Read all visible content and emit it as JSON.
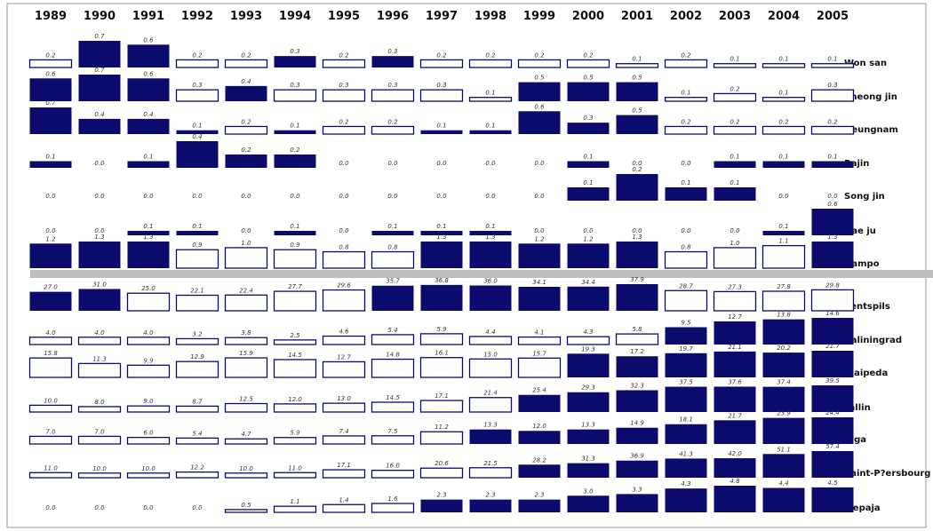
{
  "chart_data": {
    "type": "bar",
    "color": "#0b0b6e",
    "categories": [
      "1989",
      "1990",
      "1991",
      "1992",
      "1993",
      "1994",
      "1995",
      "1996",
      "1997",
      "1998",
      "1999",
      "2000",
      "2001",
      "2002",
      "2003",
      "2004",
      "2005"
    ],
    "series": [
      {
        "name": "Won san",
        "values": [
          0.2,
          0.7,
          0.6,
          0.2,
          0.2,
          0.3,
          0.2,
          0.3,
          0.2,
          0.2,
          0.2,
          0.2,
          0.1,
          0.2,
          0.1,
          0.1,
          0.1
        ],
        "value_labels": [
          "0.2",
          "0.7",
          "0.6",
          "0.2",
          "0.2",
          "0.3",
          "0.2",
          "0.3",
          "0.2",
          "0.2",
          "0.2",
          "0.2",
          "0.1",
          "0.2",
          "0.1",
          "0.1",
          "0.1"
        ],
        "highlight": [
          false,
          true,
          true,
          false,
          false,
          true,
          false,
          true,
          false,
          false,
          false,
          false,
          false,
          false,
          false,
          false,
          false
        ]
      },
      {
        "name": "Cheong jin",
        "values": [
          0.6,
          0.7,
          0.6,
          0.3,
          0.4,
          0.3,
          0.3,
          0.3,
          0.3,
          0.1,
          0.5,
          0.5,
          0.5,
          0.1,
          0.2,
          0.1,
          0.3
        ],
        "value_labels": [
          "0.6",
          "0.7",
          "0.6",
          "0.3",
          "0.4",
          "0.3",
          "0.3",
          "0.3",
          "0.3",
          "0.1",
          "0.5",
          "0.5",
          "0.5",
          "0.1",
          "0.2",
          "0.1",
          "0.3"
        ],
        "highlight": [
          true,
          true,
          true,
          false,
          true,
          false,
          false,
          false,
          false,
          false,
          true,
          true,
          true,
          false,
          false,
          false,
          false
        ]
      },
      {
        "name": "Heungnam",
        "values": [
          0.7,
          0.4,
          0.4,
          0.1,
          0.2,
          0.1,
          0.2,
          0.2,
          0.1,
          0.1,
          0.6,
          0.3,
          0.5,
          0.2,
          0.2,
          0.2,
          0.2
        ],
        "value_labels": [
          "0.7",
          "0.4",
          "0.4",
          "0.1",
          "0.2",
          "0.1",
          "0.2",
          "0.2",
          "0.1",
          "0.1",
          "0.6",
          "0.3",
          "0.5",
          "0.2",
          "0.2",
          "0.2",
          "0.2"
        ],
        "highlight": [
          true,
          true,
          true,
          true,
          false,
          true,
          false,
          false,
          true,
          true,
          true,
          true,
          true,
          false,
          false,
          false,
          false
        ]
      },
      {
        "name": "Rajin",
        "values": [
          0.1,
          0.0,
          0.1,
          0.4,
          0.2,
          0.2,
          0.0,
          0.0,
          0.0,
          0.0,
          0.0,
          0.1,
          0.0,
          0.0,
          0.1,
          0.1,
          0.1
        ],
        "value_labels": [
          "0.1",
          "0.0",
          "0.1",
          "0.4",
          "0.2",
          "0.2",
          "0.0",
          "0.0",
          "0.0",
          "0.0",
          "0.0",
          "0.1",
          "0.0",
          "0.0",
          "0.1",
          "0.1",
          "0.1"
        ],
        "highlight": [
          true,
          false,
          true,
          true,
          true,
          true,
          false,
          false,
          false,
          false,
          false,
          true,
          false,
          false,
          true,
          true,
          true
        ]
      },
      {
        "name": "Song jin",
        "values": [
          0.0,
          0.0,
          0.0,
          0.0,
          0.0,
          0.0,
          0.0,
          0.0,
          0.0,
          0.0,
          0.0,
          0.1,
          0.2,
          0.1,
          0.1,
          0.0,
          0.0
        ],
        "value_labels": [
          "0.0",
          "0.0",
          "0.0",
          "0.0",
          "0.0",
          "0.0",
          "0.0",
          "0.0",
          "0.0",
          "0.0",
          "0.0",
          "0.1",
          "0.2",
          "0.1",
          "0.1",
          "0.0",
          "0.0"
        ],
        "highlight": [
          false,
          false,
          false,
          false,
          false,
          false,
          false,
          false,
          false,
          false,
          false,
          true,
          true,
          true,
          true,
          false,
          false
        ]
      },
      {
        "name": "Hae ju",
        "values": [
          0.0,
          0.0,
          0.1,
          0.1,
          0.0,
          0.1,
          0.0,
          0.1,
          0.1,
          0.1,
          0.0,
          0.0,
          0.0,
          0.0,
          0.0,
          0.1,
          0.6
        ],
        "value_labels": [
          "0.0",
          "0.0",
          "0.1",
          "0.1",
          "0.0",
          "0.1",
          "0.0",
          "0.1",
          "0.1",
          "0.1",
          "0.0",
          "0.0",
          "0.0",
          "0.0",
          "0.0",
          "0.1",
          "0.6"
        ],
        "highlight": [
          false,
          false,
          true,
          true,
          false,
          true,
          false,
          true,
          true,
          true,
          false,
          false,
          false,
          false,
          false,
          true,
          true
        ]
      },
      {
        "name": "Nampo",
        "values": [
          1.2,
          1.3,
          1.3,
          0.9,
          1.0,
          0.9,
          0.8,
          0.8,
          1.3,
          1.3,
          1.2,
          1.2,
          1.3,
          0.8,
          1.0,
          1.1,
          1.3
        ],
        "value_labels": [
          "1.2",
          "1.3",
          "1.3",
          "0.9",
          "1.0",
          "0.9",
          "0.8",
          "0.8",
          "1.3",
          "1.3",
          "1.2",
          "1.2",
          "1.3",
          "0.8",
          "1.0",
          "1.1",
          "1.3"
        ],
        "highlight": [
          true,
          true,
          true,
          false,
          false,
          false,
          false,
          false,
          true,
          true,
          true,
          true,
          true,
          false,
          false,
          false,
          true
        ]
      },
      {
        "name": "Ventspils",
        "values": [
          27.0,
          31.0,
          25.0,
          22.1,
          22.4,
          27.7,
          29.6,
          35.7,
          36.8,
          36.0,
          34.1,
          34.4,
          37.9,
          28.7,
          27.3,
          27.8,
          29.8
        ],
        "value_labels": [
          "27.0",
          "31.0",
          "25.0",
          "22.1",
          "22.4",
          "27.7",
          "29.6",
          "35.7",
          "36.8",
          "36.0",
          "34.1",
          "34.4",
          "37.9",
          "28.7",
          "27.3",
          "27.8",
          "29.8"
        ],
        "highlight": [
          true,
          true,
          false,
          false,
          false,
          false,
          false,
          true,
          true,
          true,
          true,
          true,
          true,
          false,
          false,
          false,
          false
        ]
      },
      {
        "name": "Kaliningrad",
        "values": [
          4.0,
          4.0,
          4.0,
          3.2,
          3.8,
          2.5,
          4.6,
          5.4,
          5.9,
          4.4,
          4.1,
          4.3,
          5.8,
          9.5,
          12.7,
          13.8,
          14.6
        ],
        "value_labels": [
          "4.0",
          "4.0",
          "4.0",
          "3.2",
          "3.8",
          "2.5",
          "4.6",
          "5.4",
          "5.9",
          "4.4",
          "4.1",
          "4.3",
          "5.8",
          "9.5",
          "12.7",
          "13.8",
          "14.6"
        ],
        "highlight": [
          false,
          false,
          false,
          false,
          false,
          false,
          false,
          false,
          false,
          false,
          false,
          false,
          false,
          true,
          true,
          true,
          true
        ]
      },
      {
        "name": "Klaipeda",
        "values": [
          15.8,
          11.3,
          9.9,
          12.9,
          15.9,
          14.5,
          12.7,
          14.8,
          16.1,
          15.0,
          15.7,
          19.3,
          17.2,
          19.7,
          21.1,
          20.2,
          21.7
        ],
        "value_labels": [
          "15.8",
          "11.3",
          "9.9",
          "12.9",
          "15.9",
          "14.5",
          "12.7",
          "14.8",
          "16.1",
          "15.0",
          "15.7",
          "19.3",
          "17.2",
          "19.7",
          "21.1",
          "20.2",
          "21.7"
        ],
        "highlight": [
          false,
          false,
          false,
          false,
          false,
          false,
          false,
          false,
          false,
          false,
          false,
          true,
          true,
          true,
          true,
          true,
          true
        ]
      },
      {
        "name": "Tallin",
        "values": [
          10.0,
          8.0,
          9.0,
          8.7,
          12.5,
          12.0,
          13.0,
          14.5,
          17.1,
          21.4,
          25.4,
          29.3,
          32.3,
          37.5,
          37.6,
          37.4,
          39.5
        ],
        "value_labels": [
          "10.0",
          "8.0",
          "9.0",
          "8.7",
          "12.5",
          "12.0",
          "13.0",
          "14.5",
          "17.1",
          "21.4",
          "25.4",
          "29.3",
          "32.3",
          "37.5",
          "37.6",
          "37.4",
          "39.5"
        ],
        "highlight": [
          false,
          false,
          false,
          false,
          false,
          false,
          false,
          false,
          false,
          false,
          true,
          true,
          true,
          true,
          true,
          true,
          true
        ]
      },
      {
        "name": "Riga",
        "values": [
          7.0,
          7.0,
          6.0,
          5.4,
          4.7,
          5.9,
          7.4,
          7.5,
          11.2,
          13.3,
          12.0,
          13.3,
          14.9,
          18.1,
          21.7,
          23.9,
          24.4
        ],
        "value_labels": [
          "7.0",
          "7.0",
          "6.0",
          "5.4",
          "4.7",
          "5.9",
          "7.4",
          "7.5",
          "11.2",
          "13.3",
          "12.0",
          "13.3",
          "14.9",
          "18.1",
          "21.7",
          "23.9",
          "24.4"
        ],
        "highlight": [
          false,
          false,
          false,
          false,
          false,
          false,
          false,
          false,
          false,
          true,
          true,
          true,
          true,
          true,
          true,
          true,
          true
        ]
      },
      {
        "name": "Saint-P?ersbourg",
        "values": [
          11.0,
          10.0,
          10.0,
          12.2,
          10.0,
          11.0,
          17.1,
          16.0,
          20.6,
          21.5,
          28.2,
          31.3,
          36.9,
          41.3,
          42.0,
          51.1,
          57.4
        ],
        "value_labels": [
          "11.0",
          "10.0",
          "10.0",
          "12.2",
          "10.0",
          "11.0",
          "17.1",
          "16.0",
          "20.6",
          "21.5",
          "28.2",
          "31.3",
          "36.9",
          "41.3",
          "42.0",
          "51.1",
          "57.4"
        ],
        "highlight": [
          false,
          false,
          false,
          false,
          false,
          false,
          false,
          false,
          false,
          false,
          true,
          true,
          true,
          true,
          true,
          true,
          true
        ]
      },
      {
        "name": "Liepaja",
        "values": [
          0.0,
          0.0,
          0.0,
          0.0,
          0.5,
          1.1,
          1.4,
          1.6,
          2.3,
          2.3,
          2.3,
          3.0,
          3.3,
          4.3,
          4.8,
          4.4,
          4.5
        ],
        "value_labels": [
          "0.0",
          "0.0",
          "0.0",
          "0.0",
          "0.5",
          "1.1",
          "1.4",
          "1.6",
          "2.3",
          "2.3",
          "2.3",
          "3.0",
          "3.3",
          "4.3",
          "4.8",
          "4.4",
          "4.5"
        ],
        "highlight": [
          false,
          false,
          false,
          false,
          false,
          false,
          false,
          false,
          true,
          true,
          true,
          true,
          true,
          true,
          true,
          true,
          true
        ]
      }
    ]
  }
}
